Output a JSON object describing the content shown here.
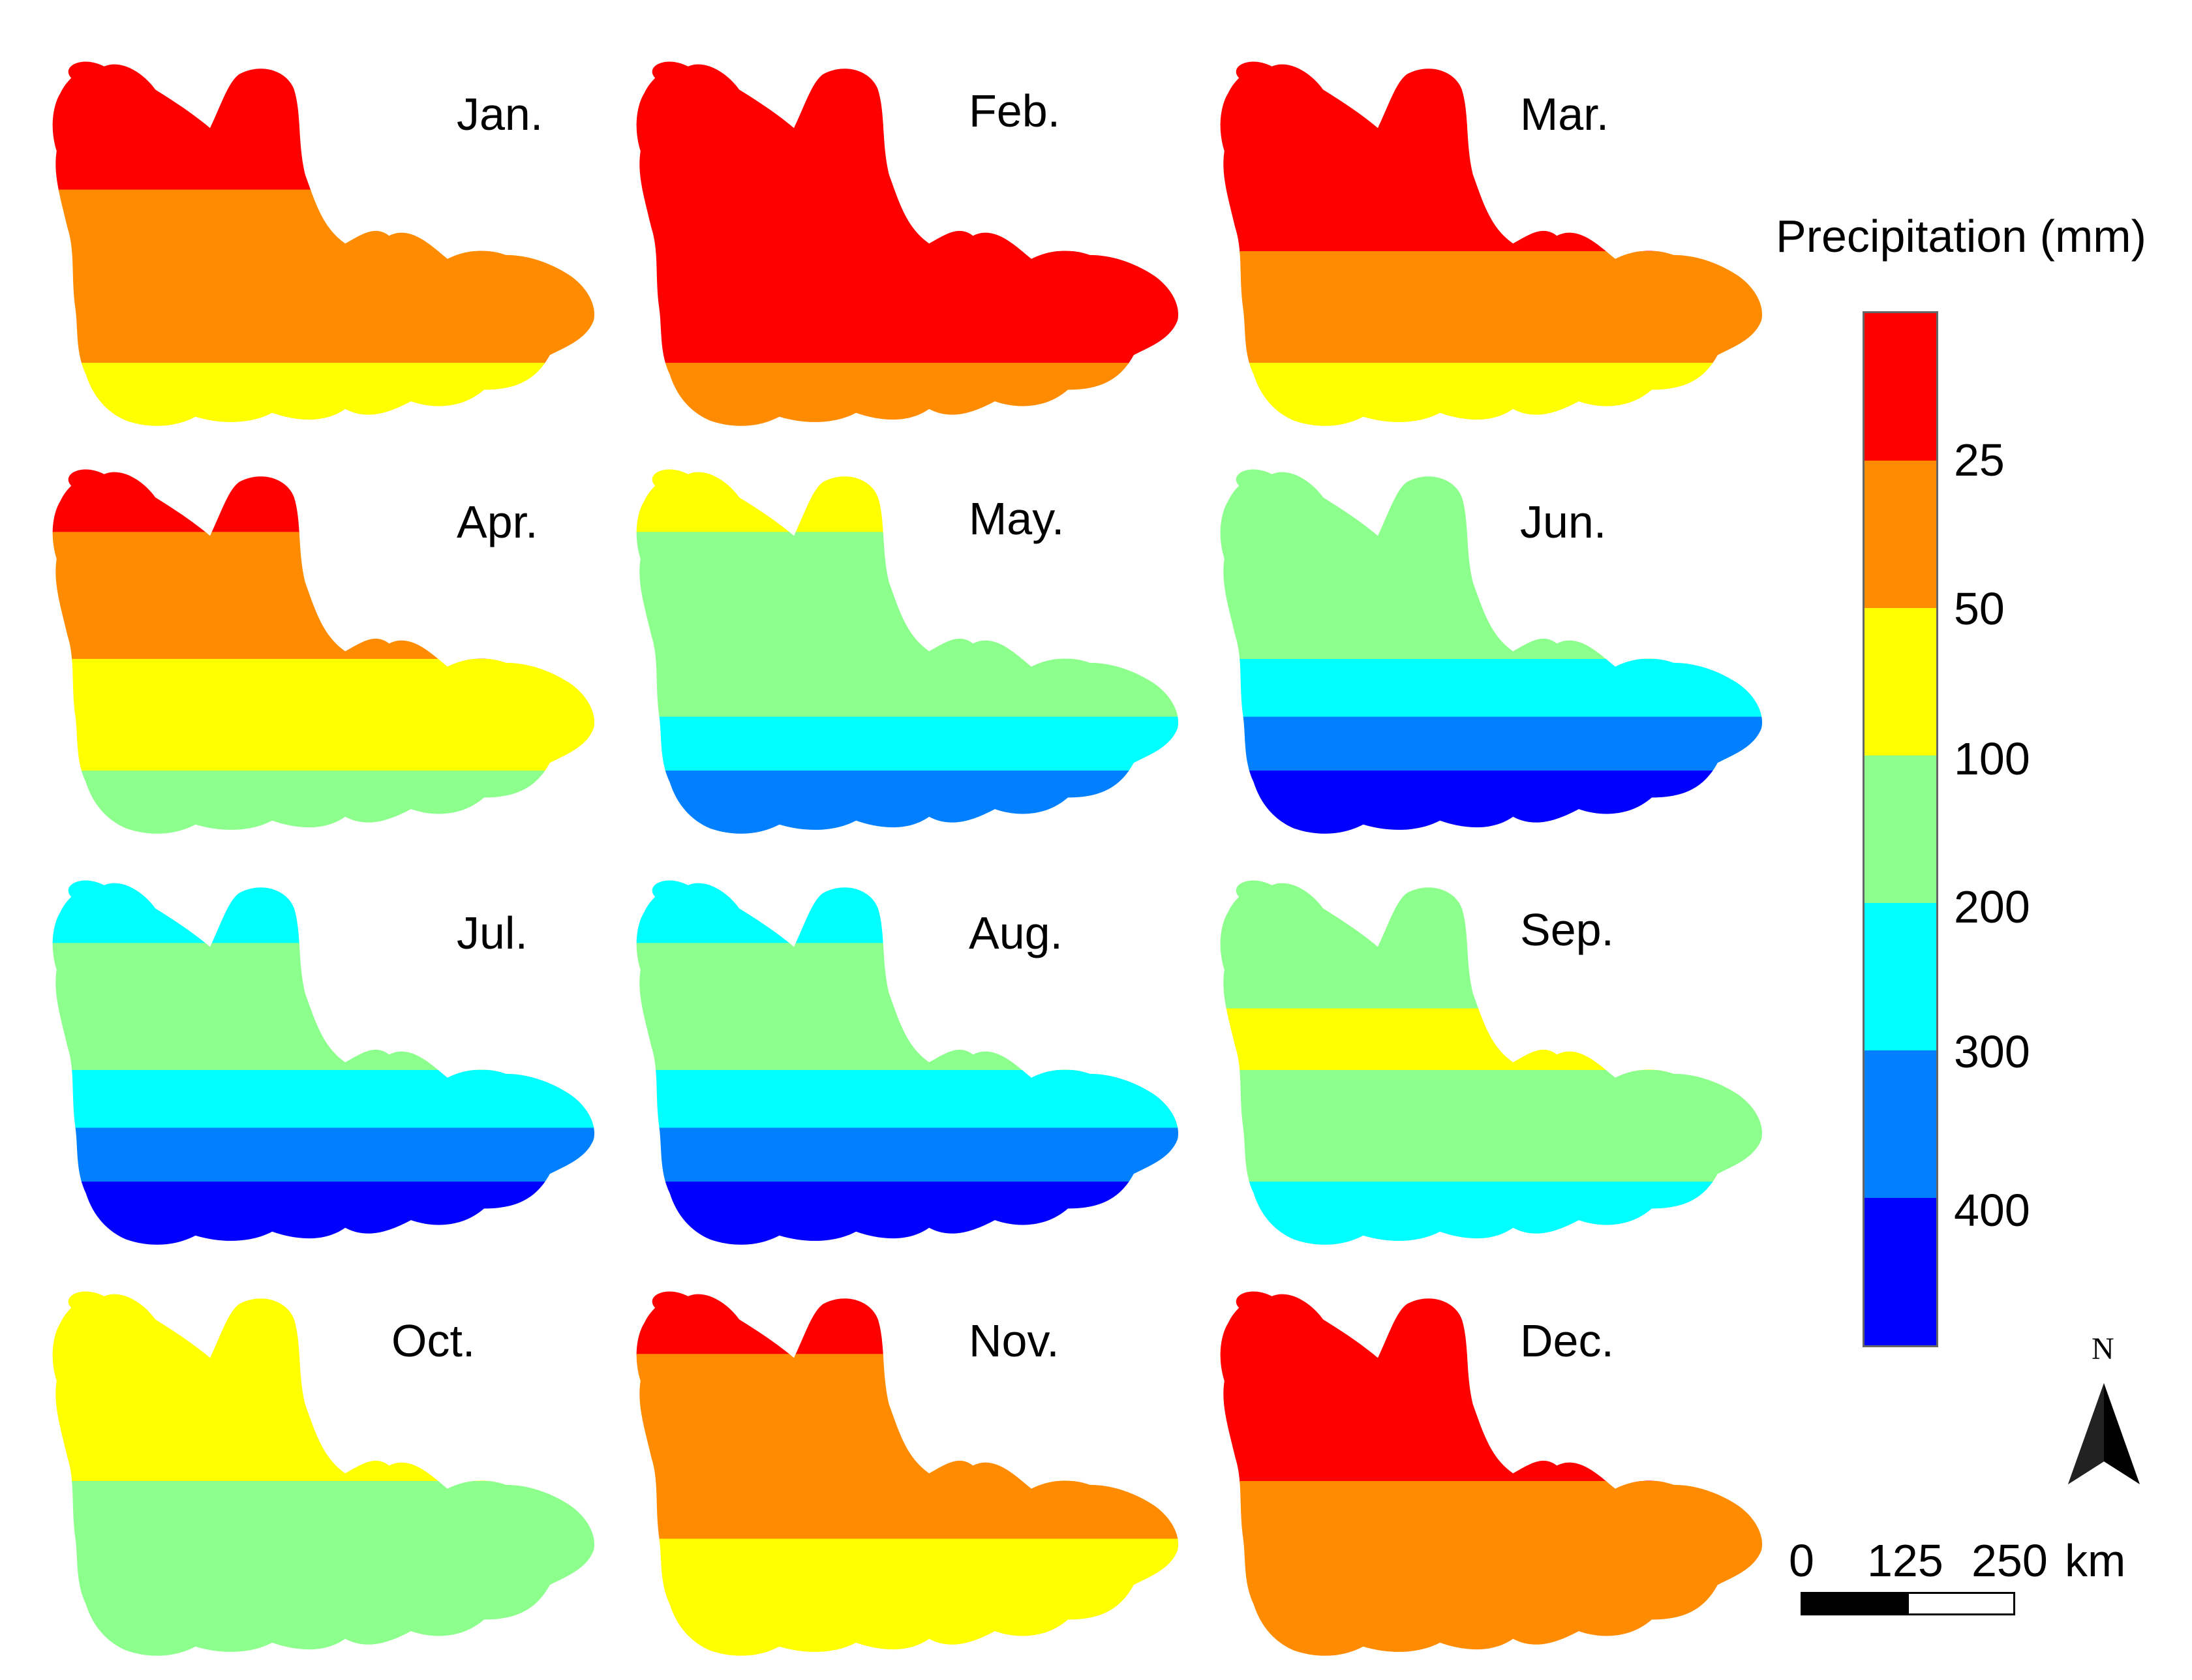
{
  "legend": {
    "title": "Precipitation (mm)",
    "classes": [
      {
        "label": "",
        "color": "#ff0000"
      },
      {
        "label": "25",
        "color": "#ff8c00"
      },
      {
        "label": "50",
        "color": "#ffff00"
      },
      {
        "label": "100",
        "color": "#8cff8c"
      },
      {
        "label": "200",
        "color": "#00ffff"
      },
      {
        "label": "300",
        "color": "#0080ff"
      },
      {
        "label": "400",
        "color": "#0000ff"
      }
    ],
    "ticks": [
      "25",
      "50",
      "100",
      "200",
      "300",
      "400"
    ]
  },
  "months": [
    {
      "label": "Jan.",
      "bands": [
        "#ff0000",
        "#ff0000",
        "#ff8c00",
        "#ff8c00",
        "#ff8c00",
        "#ffff00"
      ]
    },
    {
      "label": "Feb.",
      "bands": [
        "#ff0000",
        "#ff0000",
        "#ff0000",
        "#ff0000",
        "#ff0000",
        "#ff8c00"
      ]
    },
    {
      "label": "Mar.",
      "bands": [
        "#ff0000",
        "#ff0000",
        "#ff0000",
        "#ff8c00",
        "#ff8c00",
        "#ffff00"
      ]
    },
    {
      "label": "Apr.",
      "bands": [
        "#ff0000",
        "#ff8c00",
        "#ff8c00",
        "#ffff00",
        "#ffff00",
        "#8cff8c"
      ]
    },
    {
      "label": "May.",
      "bands": [
        "#ffff00",
        "#8cff8c",
        "#8cff8c",
        "#8cff8c",
        "#00ffff",
        "#0080ff"
      ]
    },
    {
      "label": "Jun.",
      "bands": [
        "#8cff8c",
        "#8cff8c",
        "#8cff8c",
        "#00ffff",
        "#0080ff",
        "#0000ff"
      ]
    },
    {
      "label": "Jul.",
      "bands": [
        "#00ffff",
        "#8cff8c",
        "#8cff8c",
        "#00ffff",
        "#0080ff",
        "#0000ff"
      ]
    },
    {
      "label": "Aug.",
      "bands": [
        "#00ffff",
        "#8cff8c",
        "#8cff8c",
        "#00ffff",
        "#0080ff",
        "#0000ff"
      ]
    },
    {
      "label": "Sep.",
      "bands": [
        "#8cff8c",
        "#8cff8c",
        "#ffff00",
        "#8cff8c",
        "#8cff8c",
        "#00ffff"
      ]
    },
    {
      "label": "Oct.",
      "bands": [
        "#ffff00",
        "#ffff00",
        "#ffff00",
        "#8cff8c",
        "#8cff8c",
        "#8cff8c"
      ]
    },
    {
      "label": "Nov.",
      "bands": [
        "#ff0000",
        "#ff8c00",
        "#ff8c00",
        "#ff8c00",
        "#ffff00",
        "#ffff00"
      ]
    },
    {
      "label": "Dec.",
      "bands": [
        "#ff0000",
        "#ff0000",
        "#ff0000",
        "#ff8c00",
        "#ff8c00",
        "#ff8c00"
      ]
    }
  ],
  "north_arrow": {
    "label": "N"
  },
  "scale_bar": {
    "ticks": [
      "0",
      "125",
      "250"
    ],
    "unit": "km"
  }
}
